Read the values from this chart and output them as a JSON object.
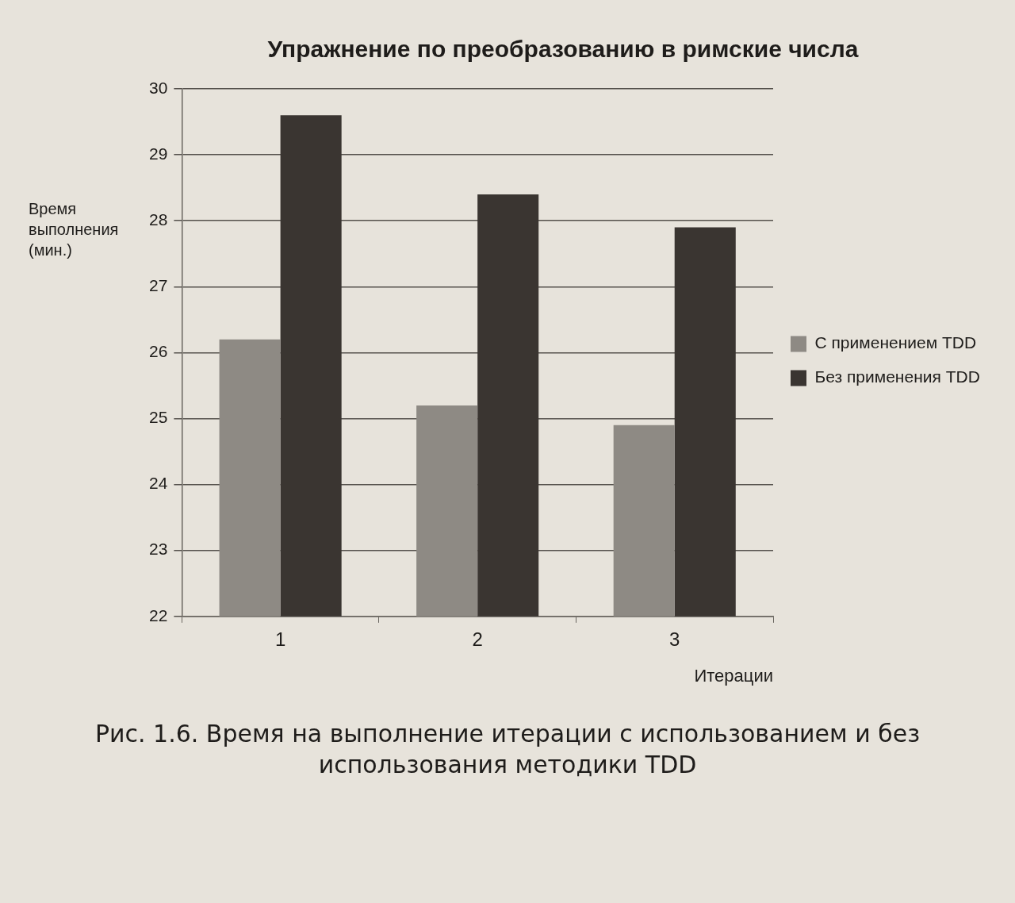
{
  "chart_data": {
    "type": "bar",
    "title": "Упражнение по преобразованию в римские числа",
    "xlabel": "Итерации",
    "ylabel": "Время выполнения (мин.)",
    "categories": [
      "1",
      "2",
      "3"
    ],
    "series": [
      {
        "name": "С применением TDD",
        "color": "#8e8a84",
        "values": [
          26.2,
          25.2,
          24.9
        ]
      },
      {
        "name": "Без применения TDD",
        "color": "#3a3531",
        "values": [
          29.6,
          28.4,
          27.9
        ]
      }
    ],
    "ylim": [
      22,
      30
    ],
    "yticks": [
      22,
      23,
      24,
      25,
      26,
      27,
      28,
      29,
      30
    ],
    "grid": "y",
    "legend": "right",
    "annotations": [
      "Рис. 1.6. Время на выполнение итерации с использованием и без использования методики TDD"
    ]
  }
}
